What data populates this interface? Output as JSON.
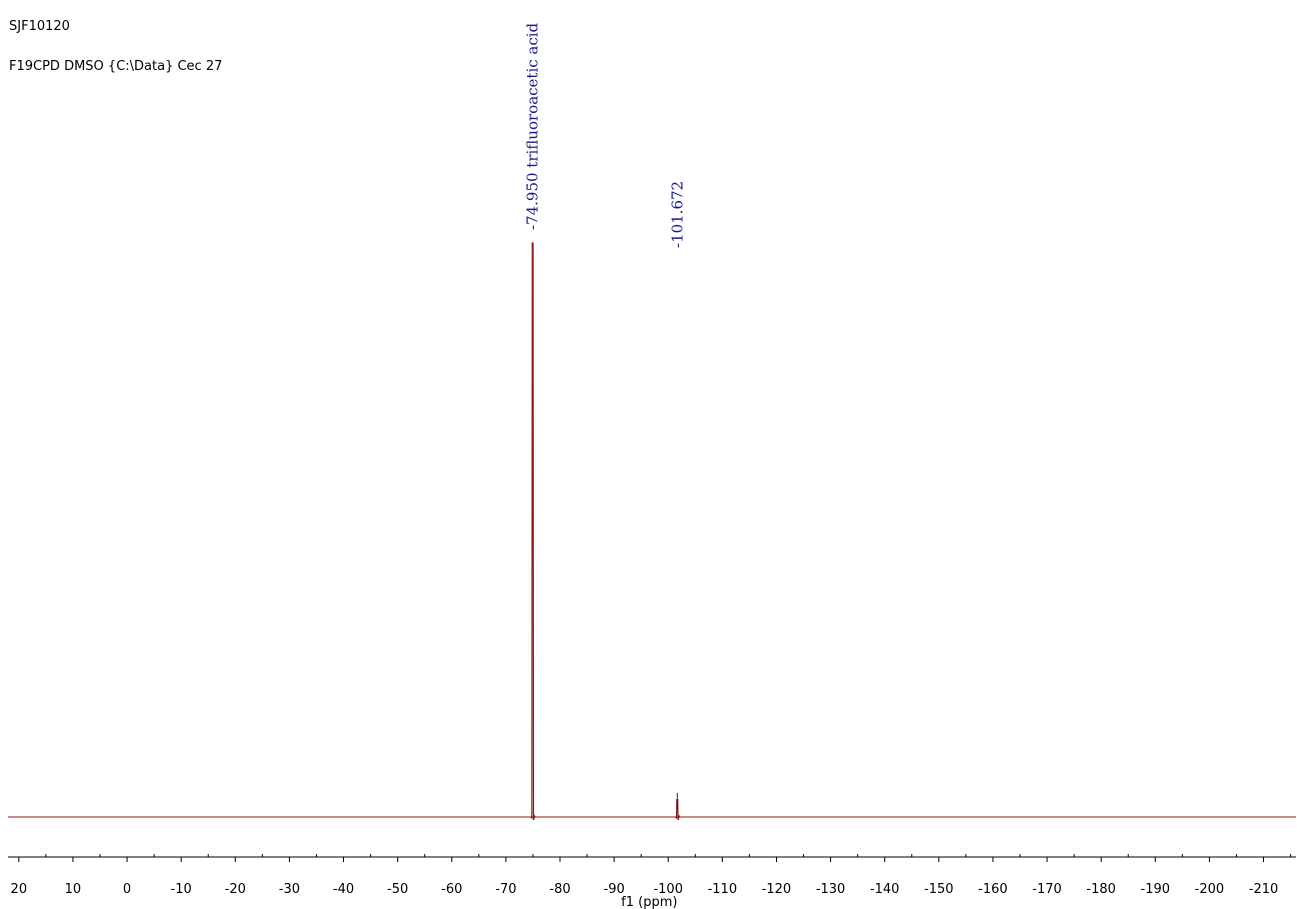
{
  "header": {
    "sample_id": "SJF10120",
    "experiment": "F19CPD DMSO {C:\\Data} Cec 27"
  },
  "chart_data": {
    "type": "line",
    "title": "",
    "xlabel": "f1 (ppm)",
    "ylabel": "",
    "xlim": [
      22,
      -216
    ],
    "x_reversed": true,
    "grid": false,
    "x_ticks": [
      20,
      10,
      0,
      -10,
      -20,
      -30,
      -40,
      -50,
      -60,
      -70,
      -80,
      -90,
      -100,
      -110,
      -120,
      -130,
      -140,
      -150,
      -160,
      -170,
      -180,
      -190,
      -200,
      -210
    ],
    "x_tick_labels": [
      "20",
      "10",
      "0",
      "-10",
      "-20",
      "-30",
      "-40",
      "-50",
      "-60",
      "-70",
      "-80",
      "-90",
      "-100",
      "-110",
      "-120",
      "-130",
      "-140",
      "-150",
      "-160",
      "-170",
      "-180",
      "-190",
      "-200",
      "-210"
    ],
    "peaks": [
      {
        "shift": -74.95,
        "label": "-74.950 trifluoroacetic acid",
        "relative_intensity": 1.0
      },
      {
        "shift": -101.672,
        "label": "-101.672",
        "relative_intensity": 0.03
      }
    ],
    "colors": {
      "spectrum": "#8b1a1a",
      "peak_label": "#1a1a8c",
      "axis": "#000000"
    }
  }
}
